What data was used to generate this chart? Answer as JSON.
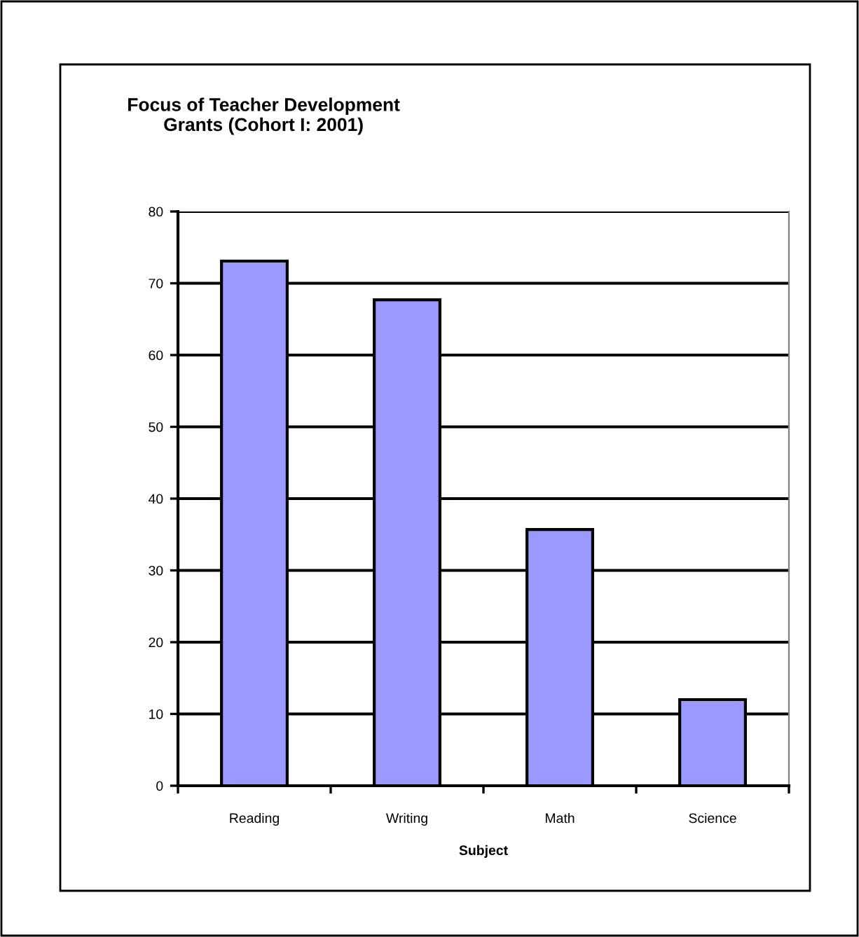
{
  "chart_data": {
    "type": "bar",
    "title": "Focus of Teacher Development\nGrants (Cohort I: 2001)",
    "xlabel": "Subject",
    "categories": [
      "Reading",
      "Writing",
      "Math",
      "Science"
    ],
    "values": [
      73.1,
      67.7,
      35.7,
      12.0
    ],
    "color": "#9999ff",
    "ylim": [
      0,
      80
    ],
    "yticks": [
      0,
      10,
      20,
      30,
      40,
      50,
      60,
      70,
      80
    ],
    "grid": "y"
  }
}
